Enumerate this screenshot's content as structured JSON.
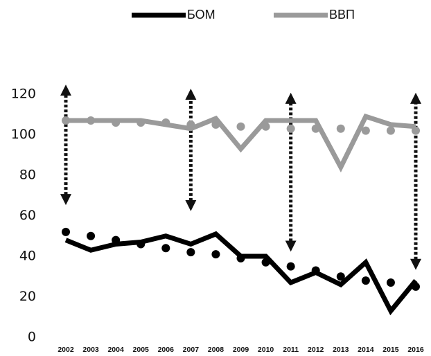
{
  "chart_data": {
    "type": "line",
    "categories": [
      "2002",
      "2003",
      "2004",
      "2005",
      "2006",
      "2007",
      "2008",
      "2009",
      "2010",
      "2011",
      "2012",
      "2013",
      "2014",
      "2015",
      "2016"
    ],
    "series": [
      {
        "name": "БОМ",
        "color": "#000000",
        "values": [
          48,
          43,
          46,
          47,
          50,
          46,
          51,
          40,
          40,
          27,
          32,
          26,
          37,
          13,
          28
        ]
      },
      {
        "name": "ВВП",
        "color": "#9a9a9a",
        "values": [
          107,
          107,
          107,
          107,
          105,
          103,
          108,
          93,
          107,
          107,
          107,
          84,
          109,
          105,
          104
        ]
      }
    ],
    "trendlines": [
      {
        "color": "#000000",
        "values": [
          52,
          50,
          48,
          46,
          44,
          42,
          41,
          39,
          37,
          35,
          33,
          30,
          28,
          27,
          25
        ]
      },
      {
        "color": "#9a9a9a",
        "values": [
          107,
          107,
          106,
          106,
          106,
          105,
          105,
          104,
          104,
          103,
          103,
          103,
          102,
          102,
          102
        ]
      }
    ],
    "arrows": [
      {
        "x": "2002",
        "from": 68,
        "to": 122
      },
      {
        "x": "2007",
        "from": 65,
        "to": 120
      },
      {
        "x": "2011",
        "from": 45,
        "to": 118
      },
      {
        "x": "2016",
        "from": 36,
        "to": 118
      }
    ],
    "ylim": [
      0,
      120
    ],
    "yticks": [
      0,
      20,
      40,
      60,
      80,
      100,
      120
    ],
    "grid": false,
    "legend": "top"
  }
}
